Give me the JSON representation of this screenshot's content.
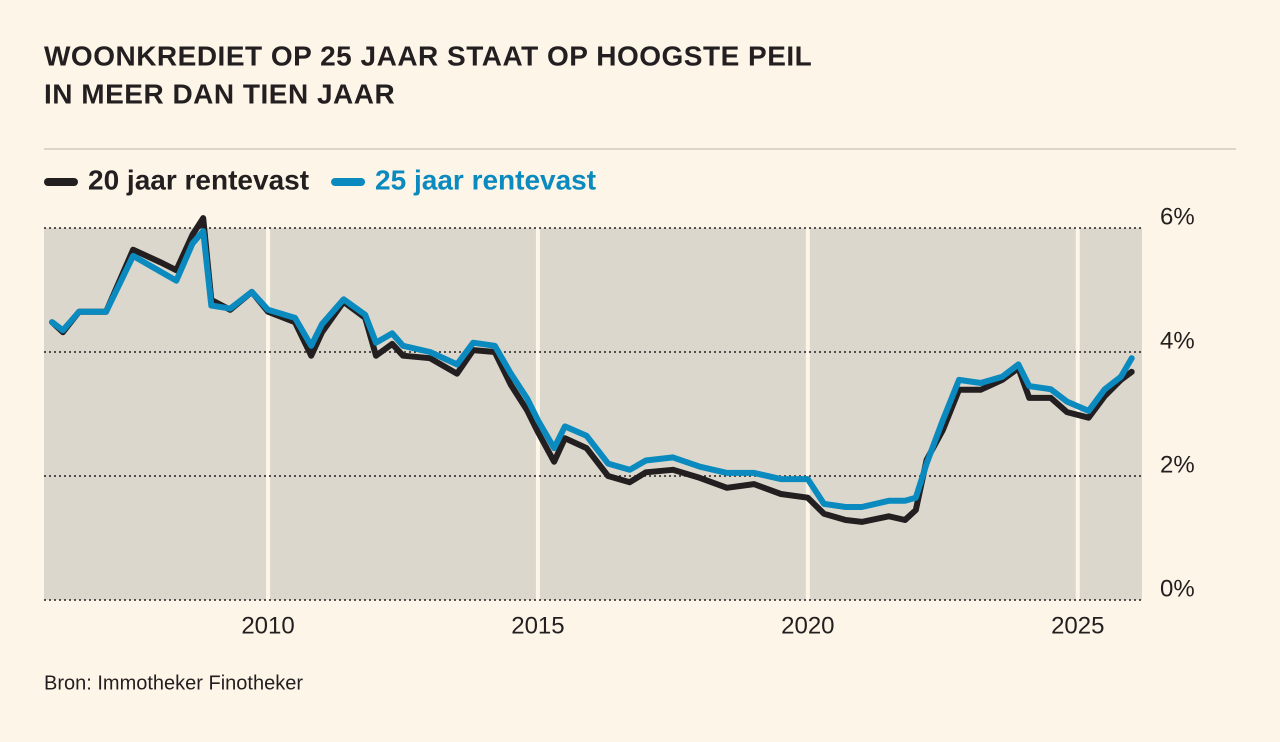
{
  "chart_data": {
    "type": "line",
    "title": [
      "WOONKREDIET OP 25 JAAR STAAT OP HOOGSTE PEIL",
      "IN MEER DAN TIEN JAAR"
    ],
    "source": "Bron: Immotheker Finotheker",
    "legend": "top-left",
    "grid": true,
    "x": [
      2006,
      2006.2,
      2006.5,
      2007,
      2007.5,
      2008,
      2008.3,
      2008.6,
      2008.8,
      2008.95,
      2009.3,
      2009.7,
      2010,
      2010.5,
      2010.8,
      2011,
      2011.4,
      2011.8,
      2012,
      2012.3,
      2012.5,
      2013,
      2013.5,
      2013.8,
      2014.2,
      2014.5,
      2014.8,
      2015,
      2015.3,
      2015.5,
      2015.9,
      2016.3,
      2016.7,
      2017,
      2017.5,
      2018,
      2018.5,
      2019,
      2019.5,
      2020,
      2020.3,
      2020.7,
      2021,
      2021.5,
      2021.8,
      2022,
      2022.2,
      2022.5,
      2022.8,
      2023.2,
      2023.6,
      2023.9,
      2024.1,
      2024.5,
      2024.8,
      2025.2,
      2025.5,
      2025.8,
      2026
    ],
    "series": [
      {
        "name": "20 jaar rentevast",
        "color": "#231f20",
        "values": [
          4.48,
          4.32,
          4.65,
          4.65,
          5.65,
          5.45,
          5.32,
          5.89,
          6.16,
          4.84,
          4.68,
          4.97,
          4.65,
          4.48,
          3.94,
          4.32,
          4.81,
          4.55,
          3.94,
          4.13,
          3.94,
          3.9,
          3.65,
          4.03,
          4.0,
          3.47,
          3.06,
          2.71,
          2.23,
          2.61,
          2.45,
          2.0,
          1.9,
          2.06,
          2.1,
          1.97,
          1.81,
          1.87,
          1.71,
          1.65,
          1.39,
          1.29,
          1.26,
          1.35,
          1.29,
          1.45,
          2.26,
          2.74,
          3.39,
          3.39,
          3.55,
          3.74,
          3.26,
          3.26,
          3.03,
          2.94,
          3.29,
          3.55,
          3.68
        ]
      },
      {
        "name": "25 jaar rentevast",
        "color": "#0a8abf",
        "values": [
          4.48,
          4.35,
          4.65,
          4.65,
          5.55,
          5.3,
          5.15,
          5.75,
          5.95,
          4.75,
          4.7,
          4.97,
          4.68,
          4.55,
          4.1,
          4.45,
          4.85,
          4.6,
          4.15,
          4.3,
          4.1,
          4.0,
          3.8,
          4.15,
          4.1,
          3.65,
          3.25,
          2.9,
          2.45,
          2.8,
          2.65,
          2.2,
          2.1,
          2.25,
          2.3,
          2.15,
          2.05,
          2.05,
          1.95,
          1.95,
          1.55,
          1.5,
          1.5,
          1.6,
          1.6,
          1.65,
          2.2,
          2.9,
          3.55,
          3.5,
          3.6,
          3.8,
          3.45,
          3.4,
          3.2,
          3.05,
          3.4,
          3.6,
          3.9
        ]
      }
    ],
    "xlim": [
      2005.85,
      2026.19
    ],
    "xticks": [
      2010,
      2015,
      2020,
      2025
    ],
    "ylim": [
      0,
      6
    ],
    "yticks": [
      {
        "value": 0,
        "label": "0%"
      },
      {
        "value": 2,
        "label": "2%"
      },
      {
        "value": 4,
        "label": "4%"
      },
      {
        "value": 6,
        "label": "6%"
      }
    ]
  }
}
